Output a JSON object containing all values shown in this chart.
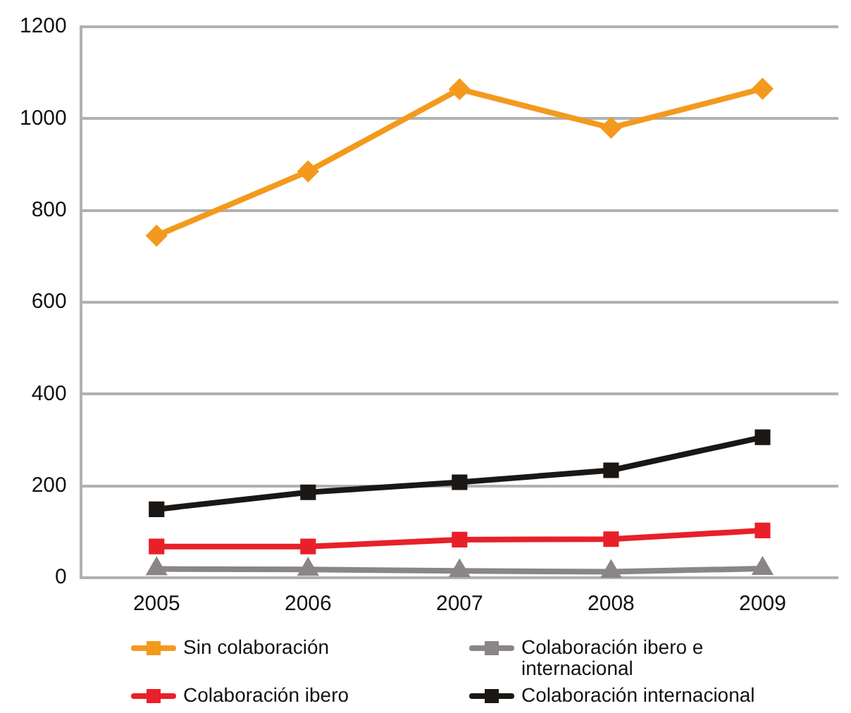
{
  "chart_data": {
    "type": "line",
    "categories": [
      "2005",
      "2006",
      "2007",
      "2008",
      "2009"
    ],
    "series": [
      {
        "name": "Sin colaboración",
        "color": "#f39a1e",
        "marker": "diamond",
        "values": [
          745,
          885,
          1064,
          980,
          1065
        ]
      },
      {
        "name": "Colaboración ibero e internacional",
        "color": "#8a8589",
        "marker": "triangle",
        "values": [
          19,
          18,
          15,
          13,
          20
        ]
      },
      {
        "name": "Colaboración ibero",
        "color": "#e8202a",
        "marker": "square",
        "values": [
          68,
          68,
          83,
          84,
          103
        ]
      },
      {
        "name": "Colaboración internacional",
        "color": "#1a1714",
        "marker": "square",
        "values": [
          149,
          186,
          208,
          234,
          306
        ]
      }
    ],
    "ylim": [
      0,
      1200
    ],
    "yticks": [
      0,
      200,
      400,
      600,
      800,
      1000,
      1200
    ],
    "grid": "y",
    "legend": "bottom",
    "line_style": "solid"
  }
}
